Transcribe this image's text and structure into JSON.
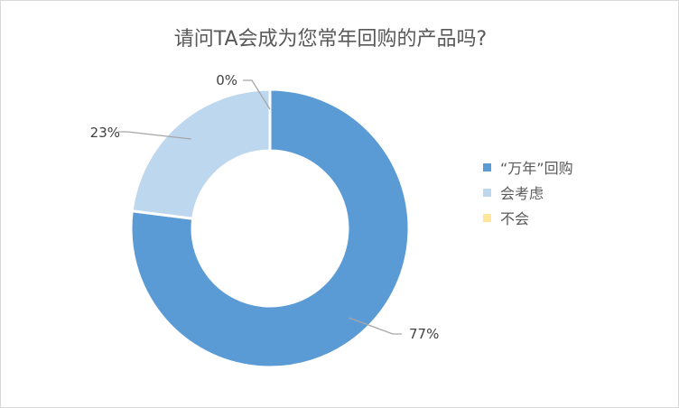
{
  "chart_data": {
    "type": "pie",
    "variant": "donut",
    "title": "请问TA会成为您常年回购的产品吗?",
    "legend_placement": "right",
    "categories": [
      "“万年”回购",
      "会考虑",
      "不会"
    ],
    "values": [
      77,
      23,
      0
    ],
    "data_labels": [
      "77%",
      "23%",
      "0%"
    ],
    "colors": [
      "#5b9bd5",
      "#bdd7ee",
      "#ffe699"
    ]
  }
}
